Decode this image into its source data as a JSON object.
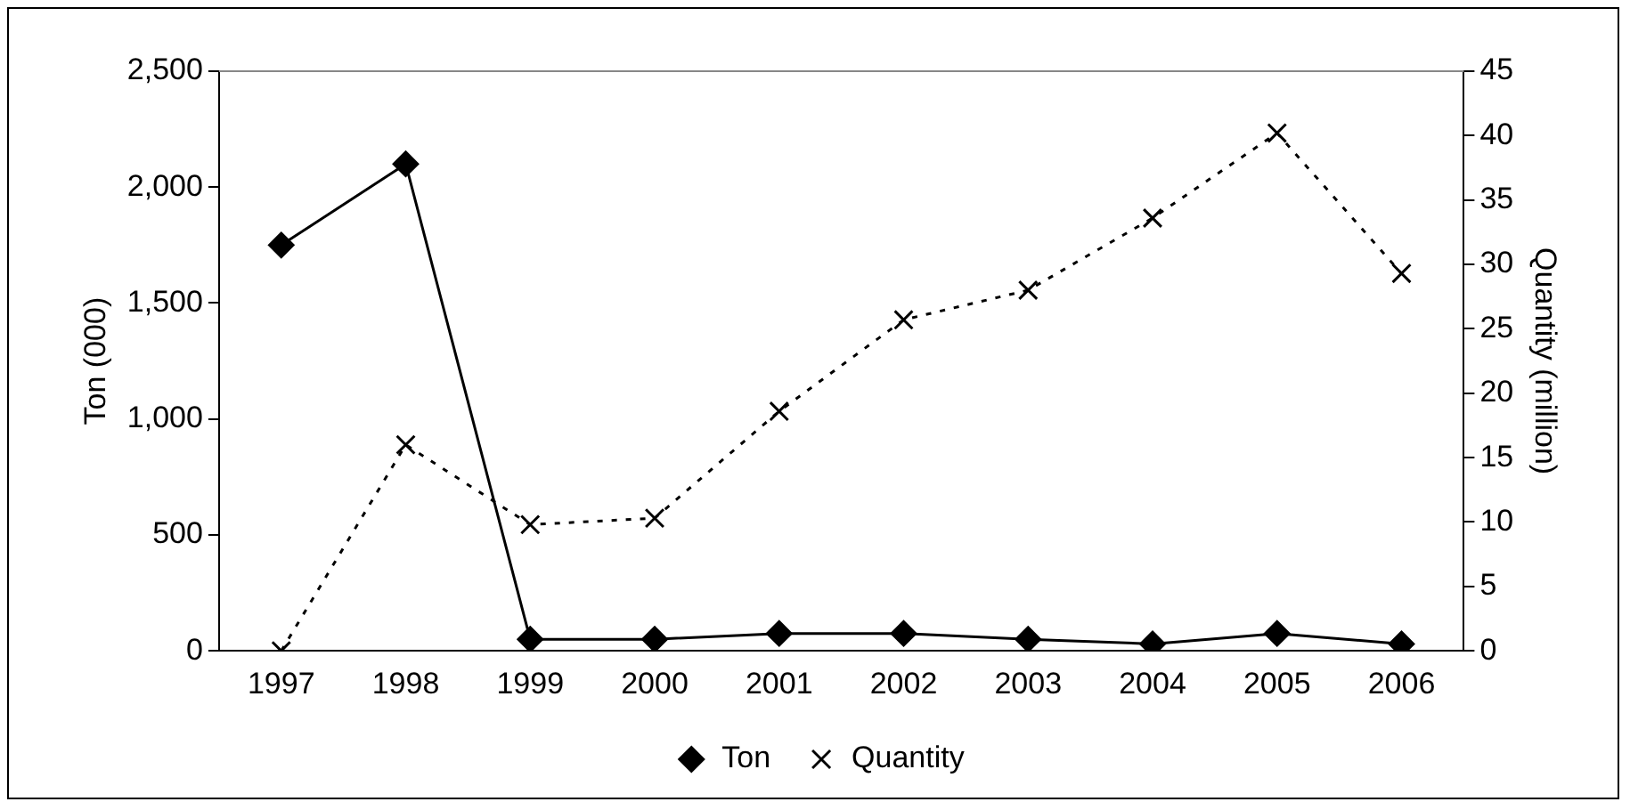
{
  "chart_data": {
    "type": "line",
    "ylabel": "Ton (000)",
    "y2label": "Quantity (million)",
    "categories": [
      "1997",
      "1998",
      "1999",
      "2000",
      "2001",
      "2002",
      "2003",
      "2004",
      "2005",
      "2006"
    ],
    "series": [
      {
        "name": "Ton",
        "color": "#000000",
        "marker": "diamond",
        "line_style": "solid",
        "values": [
          1750,
          2100,
          50,
          50,
          75,
          75,
          50,
          30,
          75,
          30
        ]
      },
      {
        "name": "Quantity",
        "color": "#000000",
        "marker": "cross",
        "line_style": "dotted",
        "axis": "y2",
        "values": [
          0,
          16,
          9.8,
          10.3,
          18.6,
          25.7,
          28,
          33.6,
          40.2,
          29.3
        ]
      }
    ],
    "ylim": [
      0,
      2500
    ],
    "yticks": [
      {
        "value": 0,
        "label": "0"
      },
      {
        "value": 500,
        "label": "500"
      },
      {
        "value": 1000,
        "label": "1,000"
      },
      {
        "value": 1500,
        "label": "1,500"
      },
      {
        "value": 2000,
        "label": "2,000"
      },
      {
        "value": 2500,
        "label": "2,500"
      }
    ],
    "y2lim": [
      0,
      45
    ],
    "y2ticks": [
      0,
      5,
      10,
      15,
      20,
      25,
      30,
      35,
      40,
      45
    ],
    "grid": false,
    "legend": "bottom"
  }
}
